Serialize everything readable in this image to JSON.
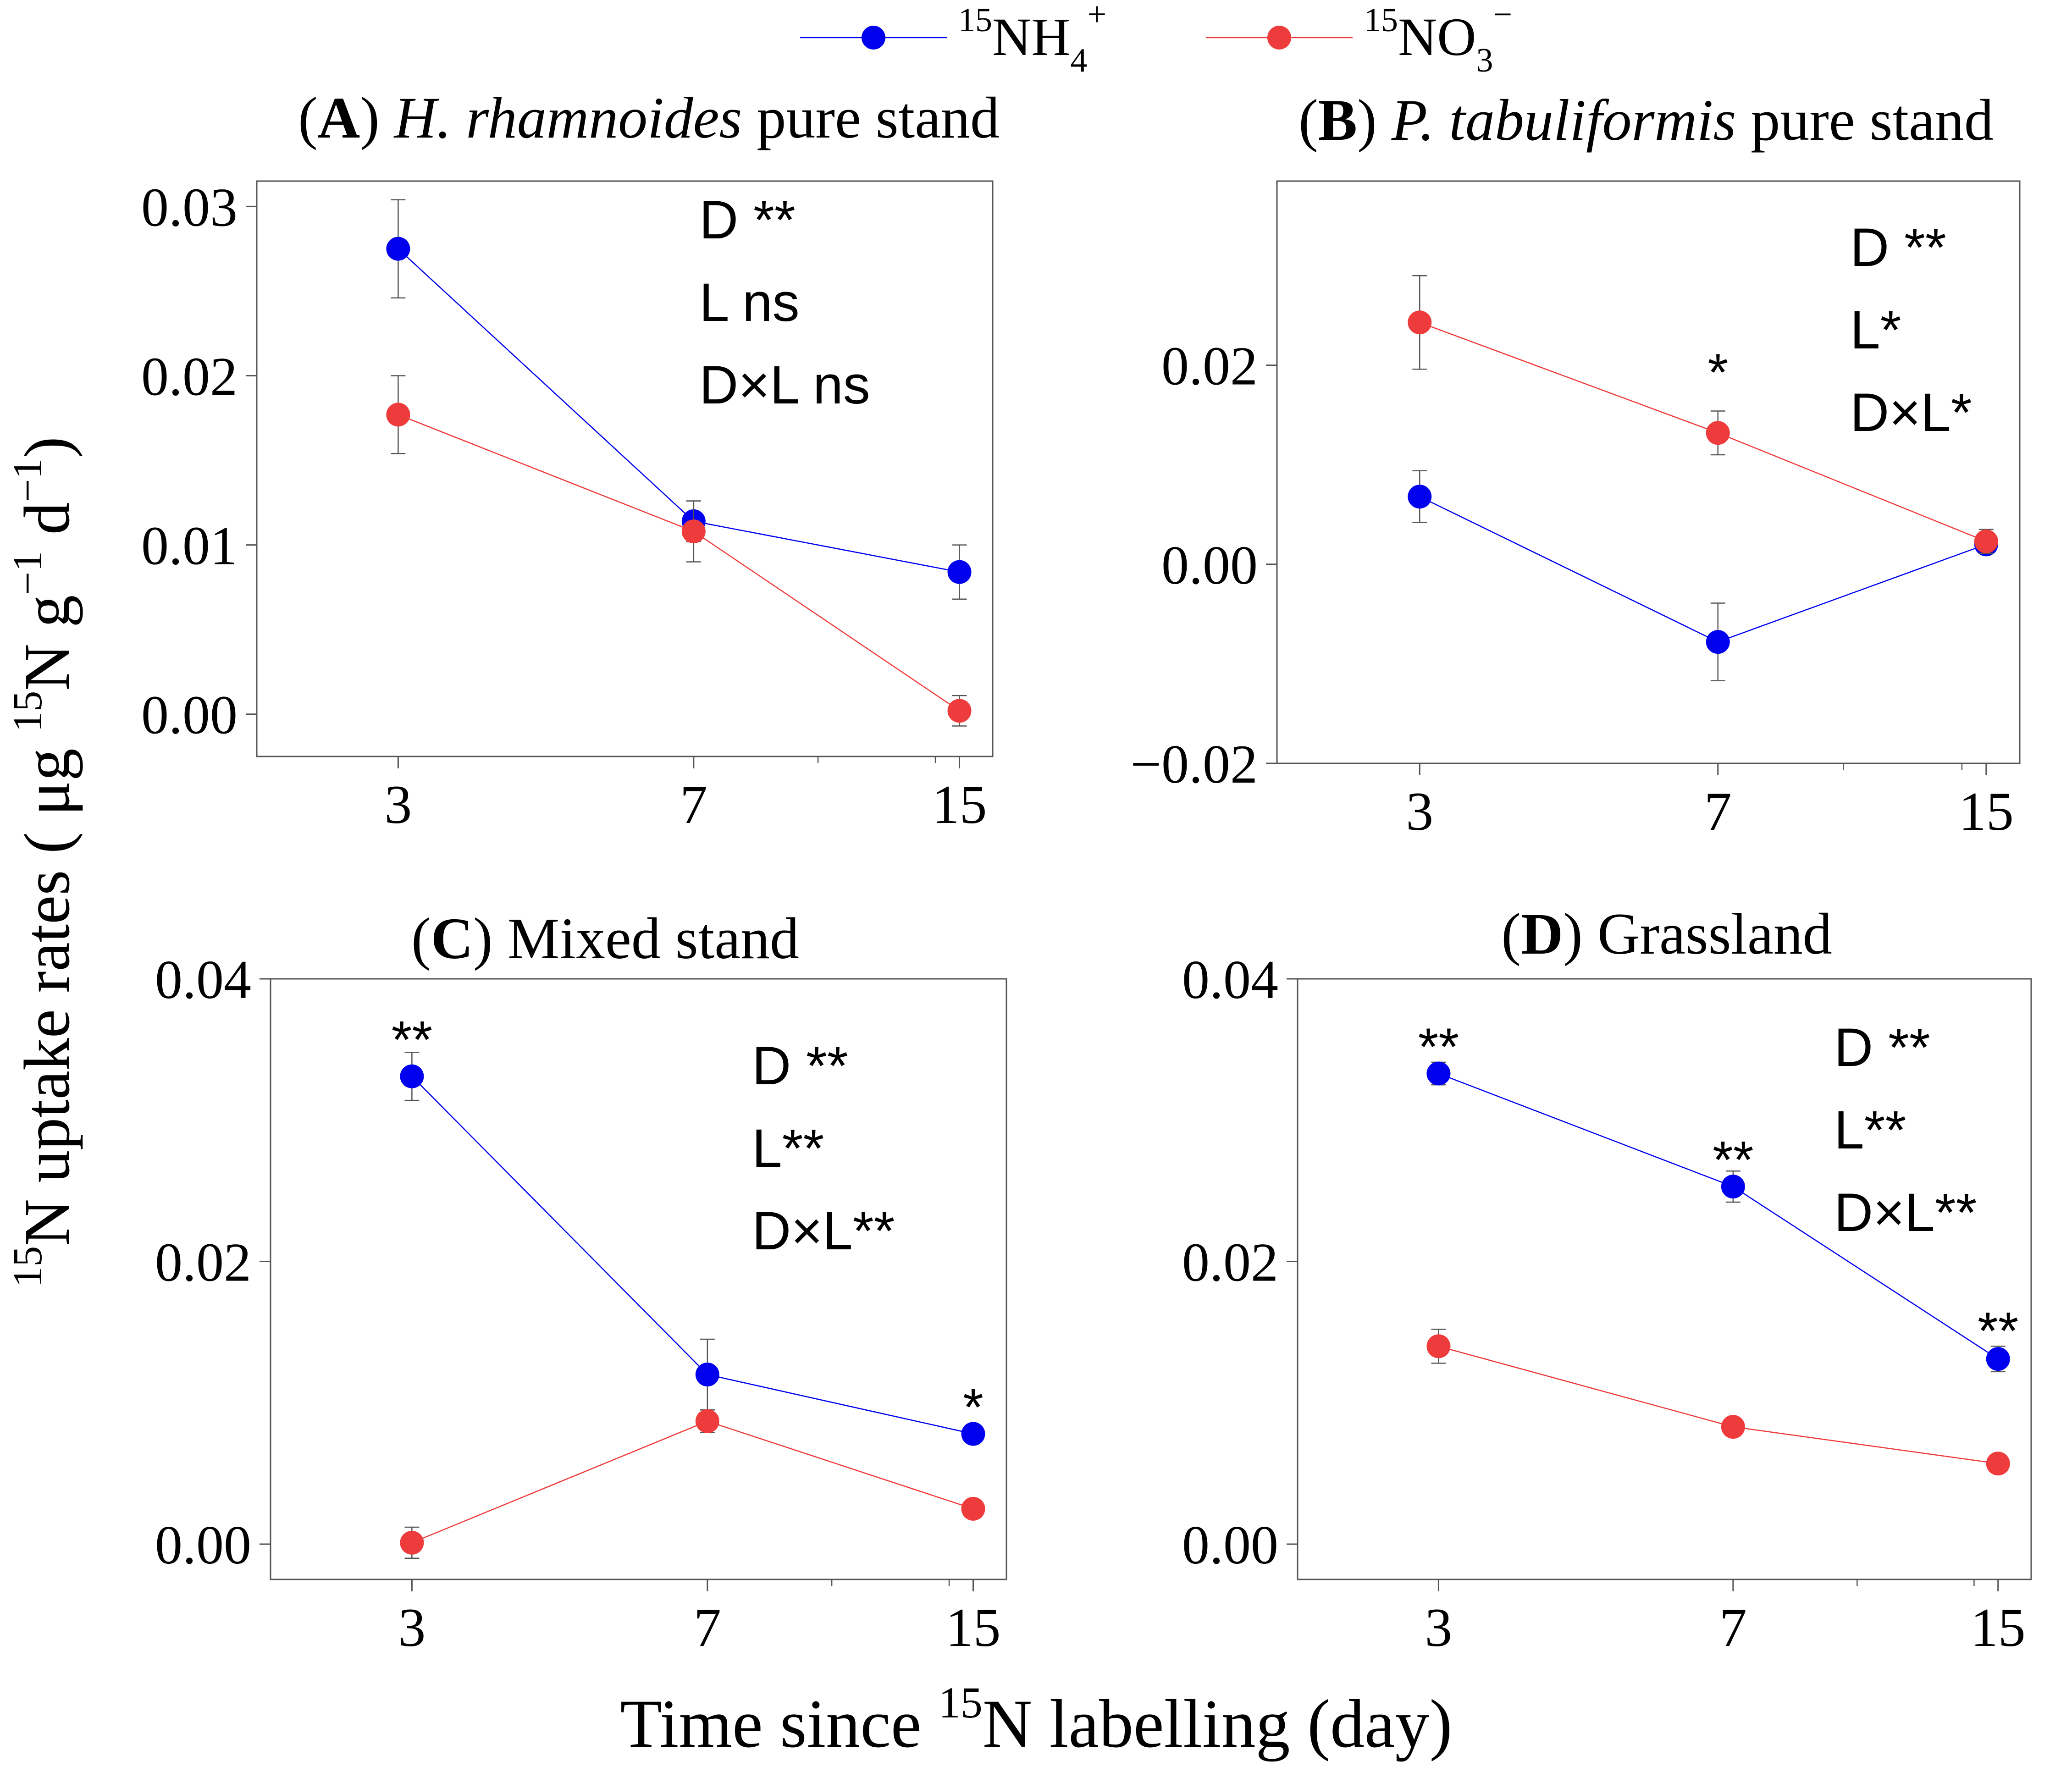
{
  "figure": {
    "legend": [
      {
        "iso": "15",
        "base": "NH",
        "sub": "4",
        "sup": "+",
        "color": "#0000ee"
      },
      {
        "iso": "15",
        "base": "NO",
        "sub": "3",
        "sup": "−",
        "color": "#ee3b3b"
      }
    ],
    "ylabel": {
      "iso": "15",
      "text": "N uptake rates",
      "unit_prefix": "( μg ",
      "unit_iso": "15",
      "unit_mid": "N g",
      "unit_exp1": "−1",
      "unit_d": " d",
      "unit_exp2": "−1",
      "unit_close": ")"
    },
    "xlabel": {
      "prefix": "Time since ",
      "iso": "15",
      "suffix": "N labelling (day)"
    }
  },
  "chart_data": [
    {
      "id": "A",
      "type": "line",
      "title_letter": "A",
      "title_italic": "H. rhamnoides",
      "title_rest": " pure stand",
      "x": [
        3,
        7,
        15
      ],
      "x_ticklabels": [
        "3",
        "7",
        "15"
      ],
      "xlim": [
        2,
        16.5
      ],
      "ylim": [
        -0.0025,
        0.0315
      ],
      "yticks": [
        0.0,
        0.01,
        0.02,
        0.03
      ],
      "ytick_labels": [
        "0.00",
        "0.01",
        "0.02",
        "0.03"
      ],
      "series": [
        {
          "name": "15NH4+",
          "color": "#0000ee",
          "values": [
            0.0275,
            0.0114,
            0.0084
          ],
          "err": [
            0.0029,
            0.0012,
            0.0016
          ]
        },
        {
          "name": "15NO3−",
          "color": "#ee3b3b",
          "values": [
            0.0177,
            0.0108,
            0.0002
          ],
          "err": [
            0.0023,
            0.0018,
            0.0009
          ]
        }
      ],
      "stats": [
        "D **",
        "L ns",
        "D×L ns"
      ],
      "sig_marks": []
    },
    {
      "id": "B",
      "type": "line",
      "title_letter": "B",
      "title_italic": "P. tabuliformis",
      "title_rest": " pure stand",
      "x": [
        3,
        7,
        15
      ],
      "x_ticklabels": [
        "3",
        "7",
        "15"
      ],
      "xlim": [
        2,
        16.5
      ],
      "ylim": [
        -0.02,
        0.0385
      ],
      "yticks": [
        -0.02,
        0.0,
        0.02
      ],
      "ytick_labels": [
        "−0.02",
        "0.00",
        "0.02"
      ],
      "series": [
        {
          "name": "15NH4+",
          "color": "#0000ee",
          "values": [
            0.0068,
            -0.0078,
            0.002
          ],
          "err": [
            0.0026,
            0.0039,
            0.0008
          ]
        },
        {
          "name": "15NO3−",
          "color": "#ee3b3b",
          "values": [
            0.0243,
            0.0132,
            0.0023
          ],
          "err": [
            0.0047,
            0.0022,
            0.0012
          ]
        }
      ],
      "stats": [
        "D **",
        "L*",
        "D×L*"
      ],
      "sig_marks": [
        {
          "x": 7,
          "y": 0.0193,
          "text": "*"
        }
      ]
    },
    {
      "id": "C",
      "type": "line",
      "title_letter": "C",
      "title_italic": "",
      "title_rest": " Mixed stand",
      "x": [
        3,
        7,
        15
      ],
      "x_ticklabels": [
        "3",
        "7",
        "15"
      ],
      "xlim": [
        2,
        16.5
      ],
      "ylim": [
        -0.0025,
        0.04
      ],
      "yticks": [
        0.0,
        0.02,
        0.04
      ],
      "ytick_labels": [
        "0.00",
        "0.02",
        "0.04"
      ],
      "series": [
        {
          "name": "15NH4+",
          "color": "#0000ee",
          "values": [
            0.0331,
            0.012,
            0.0078
          ],
          "err": [
            0.0017,
            0.0025,
            0.0006
          ]
        },
        {
          "name": "15NO3−",
          "color": "#ee3b3b",
          "values": [
            0.0001,
            0.0087,
            0.0025
          ],
          "err": [
            0.0011,
            0.0008,
            0.0005
          ]
        }
      ],
      "stats": [
        "D **",
        "L**",
        "D×L**"
      ],
      "sig_marks": [
        {
          "x": 3,
          "y": 0.0357,
          "text": "**"
        },
        {
          "x": 15,
          "y": 0.0097,
          "text": "*"
        }
      ]
    },
    {
      "id": "D",
      "type": "line",
      "title_letter": "D",
      "title_italic": "",
      "title_rest": " Grassland",
      "x": [
        3,
        7,
        15
      ],
      "x_ticklabels": [
        "3",
        "7",
        "15"
      ],
      "xlim": [
        2,
        16.5
      ],
      "ylim": [
        -0.0025,
        0.04
      ],
      "yticks": [
        0.0,
        0.02,
        0.04
      ],
      "ytick_labels": [
        "0.00",
        "0.02",
        "0.04"
      ],
      "series": [
        {
          "name": "15NH4+",
          "color": "#0000ee",
          "values": [
            0.0333,
            0.0253,
            0.0131
          ],
          "err": [
            0.0008,
            0.0011,
            0.0009
          ]
        },
        {
          "name": "15NO3−",
          "color": "#ee3b3b",
          "values": [
            0.014,
            0.0083,
            0.0057
          ],
          "err": [
            0.0012,
            0.0006,
            0.0005
          ]
        }
      ],
      "stats": [
        "D **",
        "L**",
        "D×L**"
      ],
      "sig_marks": [
        {
          "x": 3,
          "y": 0.0352,
          "text": "**"
        },
        {
          "x": 7,
          "y": 0.0272,
          "text": "**"
        },
        {
          "x": 15,
          "y": 0.0151,
          "text": "**"
        }
      ]
    }
  ]
}
